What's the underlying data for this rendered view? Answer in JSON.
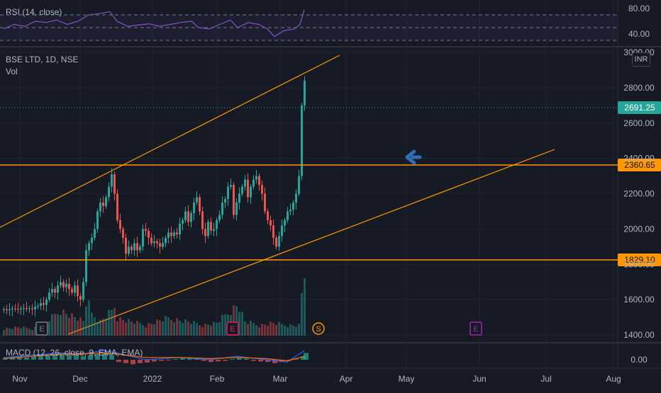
{
  "theme": {
    "background": "#161a25",
    "grid": "#20242f",
    "separator": "#2a2e39",
    "text": "#b2b5be",
    "up": "#26a69a",
    "down": "#ef5350",
    "trend": "#ff9800",
    "rsi_line": "#7e57c2",
    "macd_line": "#2962ff",
    "signal_line": "#ff6d00",
    "arrow": "#2f6fb3",
    "earnings_marker": "#e91e63",
    "dividend_marker": "#ff9800",
    "future_marker": "#9c27b0",
    "last_price_bg": "#26a69a",
    "level_bg": "#ff9800"
  },
  "symbol": {
    "title": "BSE LTD, 1D, NSE",
    "volume_label": "Vol"
  },
  "currency_button": "INR",
  "rsi": {
    "label": "RSI (14, close)",
    "ticks": [
      "80.00",
      "40.00"
    ]
  },
  "macd": {
    "label": "MACD (12, 26, close, 9, EMA, EMA)",
    "tick": "0.00"
  },
  "price_axis": {
    "ticks": [
      "3000.00",
      "2800.00",
      "2600.00",
      "2400.00",
      "2200.00",
      "2000.00",
      "1800.00",
      "1600.00",
      "1400.00"
    ],
    "last_price": "2691.25",
    "levels": [
      "2360.65",
      "1829.10"
    ]
  },
  "time_axis": {
    "labels": [
      "Nov",
      "Dec",
      "2022",
      "Feb",
      "Mar",
      "Apr",
      "May",
      "Jun",
      "Jul",
      "Aug"
    ]
  },
  "markers": {
    "earnings": "E",
    "dividend": "S",
    "future_earnings": "E"
  },
  "chart_data": {
    "type": "candlestick",
    "symbol": "BSE LTD",
    "interval": "1D",
    "exchange": "NSE",
    "currency": "INR",
    "x_axis_labels": [
      "Nov",
      "Dec",
      "2022",
      "Feb",
      "Mar",
      "Apr",
      "May",
      "Jun",
      "Jul",
      "Aug"
    ],
    "y_ticks": [
      1400,
      1600,
      1800,
      2000,
      2200,
      2400,
      2600,
      2800,
      3000
    ],
    "ylim": [
      1320,
      3060
    ],
    "price_levels": [
      2360.65,
      1829.1
    ],
    "last_price": 2691.25,
    "ohlc_trace": [
      [
        0,
        1540
      ],
      [
        4,
        1545
      ],
      [
        8,
        1540
      ],
      [
        12,
        1545
      ],
      [
        16,
        1550
      ],
      [
        20,
        1548
      ],
      [
        24,
        1545
      ],
      [
        28,
        1550
      ],
      [
        32,
        1552
      ],
      [
        36,
        1548
      ],
      [
        40,
        1550
      ],
      [
        44,
        1545
      ],
      [
        48,
        1560
      ],
      [
        52,
        1565
      ],
      [
        56,
        1580
      ],
      [
        60,
        1570
      ],
      [
        64,
        1600
      ],
      [
        68,
        1640
      ],
      [
        72,
        1660
      ],
      [
        76,
        1640
      ],
      [
        80,
        1680
      ],
      [
        84,
        1700
      ],
      [
        88,
        1670
      ],
      [
        92,
        1690
      ],
      [
        96,
        1660
      ],
      [
        100,
        1640
      ],
      [
        104,
        1680
      ],
      [
        108,
        1620
      ],
      [
        112,
        1600
      ],
      [
        116,
        1700
      ],
      [
        120,
        1880
      ],
      [
        124,
        1920
      ],
      [
        128,
        1950
      ],
      [
        132,
        2000
      ],
      [
        136,
        2100
      ],
      [
        140,
        2150
      ],
      [
        144,
        2130
      ],
      [
        148,
        2180
      ],
      [
        152,
        2240
      ],
      [
        156,
        2310
      ],
      [
        160,
        2200
      ],
      [
        164,
        2050
      ],
      [
        168,
        2000
      ],
      [
        172,
        1950
      ],
      [
        176,
        1860
      ],
      [
        180,
        1900
      ],
      [
        184,
        1880
      ],
      [
        188,
        1920
      ],
      [
        192,
        1880
      ],
      [
        196,
        1900
      ],
      [
        200,
        2000
      ],
      [
        204,
        1990
      ],
      [
        208,
        1950
      ],
      [
        212,
        1920
      ],
      [
        216,
        1930
      ],
      [
        220,
        1920
      ],
      [
        224,
        1900
      ],
      [
        228,
        1920
      ],
      [
        232,
        1950
      ],
      [
        236,
        1980
      ],
      [
        240,
        1960
      ],
      [
        244,
        1980
      ],
      [
        248,
        1970
      ],
      [
        252,
        2030
      ],
      [
        256,
        2050
      ],
      [
        260,
        2100
      ],
      [
        264,
        2040
      ],
      [
        268,
        2090
      ],
      [
        272,
        2150
      ],
      [
        276,
        2180
      ],
      [
        280,
        2100
      ],
      [
        284,
        2000
      ],
      [
        288,
        1960
      ],
      [
        292,
        2040
      ],
      [
        296,
        1990
      ],
      [
        300,
        2000
      ],
      [
        304,
        2050
      ],
      [
        308,
        2080
      ],
      [
        312,
        2150
      ],
      [
        316,
        2170
      ],
      [
        320,
        2240
      ],
      [
        324,
        2250
      ],
      [
        328,
        2080
      ],
      [
        332,
        2150
      ],
      [
        336,
        2200
      ],
      [
        340,
        2240
      ],
      [
        344,
        2280
      ],
      [
        348,
        2180
      ],
      [
        352,
        2240
      ],
      [
        356,
        2280
      ],
      [
        360,
        2300
      ],
      [
        364,
        2250
      ],
      [
        368,
        2200
      ],
      [
        372,
        2100
      ],
      [
        376,
        2050
      ],
      [
        380,
        2020
      ],
      [
        384,
        1950
      ],
      [
        388,
        1900
      ],
      [
        392,
        1960
      ],
      [
        396,
        2020
      ],
      [
        400,
        2050
      ],
      [
        404,
        2100
      ],
      [
        408,
        2110
      ],
      [
        412,
        2150
      ],
      [
        416,
        2200
      ],
      [
        420,
        2300
      ],
      [
        424,
        2700
      ],
      [
        428,
        2840
      ]
    ],
    "volume_ref": [
      [
        0,
        1
      ],
      [
        20,
        1.2
      ],
      [
        40,
        1
      ],
      [
        60,
        2
      ],
      [
        80,
        3.6
      ],
      [
        100,
        2.6
      ],
      [
        112,
        2
      ],
      [
        116,
        4.5
      ],
      [
        120,
        6.2
      ],
      [
        124,
        3
      ],
      [
        136,
        2
      ],
      [
        152,
        3.5
      ],
      [
        156,
        4.2
      ],
      [
        160,
        2.5
      ],
      [
        180,
        2
      ],
      [
        200,
        1.5
      ],
      [
        230,
        2.5
      ],
      [
        260,
        2
      ],
      [
        280,
        1.5
      ],
      [
        300,
        1.8
      ],
      [
        330,
        4.5
      ],
      [
        340,
        2
      ],
      [
        360,
        1.5
      ],
      [
        380,
        1.8
      ],
      [
        400,
        1.5
      ],
      [
        416,
        1.5
      ],
      [
        420,
        6
      ],
      [
        424,
        9.2
      ]
    ],
    "rsi": {
      "ylim": [
        25,
        100
      ],
      "ticks": [
        40,
        80
      ],
      "values": [
        [
          0,
          48
        ],
        [
          15,
          55
        ],
        [
          30,
          52
        ],
        [
          45,
          60
        ],
        [
          60,
          58
        ],
        [
          75,
          62
        ],
        [
          90,
          55
        ],
        [
          105,
          60
        ],
        [
          120,
          70
        ],
        [
          135,
          72
        ],
        [
          150,
          75
        ],
        [
          160,
          60
        ],
        [
          175,
          52
        ],
        [
          190,
          54
        ],
        [
          205,
          56
        ],
        [
          220,
          52
        ],
        [
          235,
          55
        ],
        [
          250,
          58
        ],
        [
          265,
          60
        ],
        [
          275,
          50
        ],
        [
          290,
          48
        ],
        [
          305,
          55
        ],
        [
          320,
          62
        ],
        [
          330,
          50
        ],
        [
          345,
          58
        ],
        [
          360,
          55
        ],
        [
          372,
          48
        ],
        [
          382,
          36
        ],
        [
          395,
          45
        ],
        [
          410,
          48
        ],
        [
          418,
          55
        ],
        [
          424,
          78
        ]
      ]
    },
    "macd": {
      "zero_tick": 0.0,
      "histogram": [
        [
          0,
          1.5
        ],
        [
          10,
          2.5
        ],
        [
          20,
          3
        ],
        [
          30,
          2
        ],
        [
          40,
          2.5
        ],
        [
          50,
          3.5
        ],
        [
          60,
          4
        ],
        [
          70,
          4.5
        ],
        [
          80,
          5
        ],
        [
          90,
          4
        ],
        [
          100,
          4.5
        ],
        [
          110,
          3
        ],
        [
          120,
          4
        ],
        [
          130,
          5
        ],
        [
          140,
          6
        ],
        [
          150,
          4
        ],
        [
          160,
          -2
        ],
        [
          170,
          -3
        ],
        [
          180,
          -4
        ],
        [
          190,
          -3
        ],
        [
          200,
          -2.5
        ],
        [
          210,
          -1.5
        ],
        [
          220,
          -1
        ],
        [
          230,
          -0.5
        ],
        [
          240,
          0.5
        ],
        [
          250,
          1.5
        ],
        [
          260,
          2
        ],
        [
          270,
          1
        ],
        [
          280,
          -1
        ],
        [
          290,
          -2
        ],
        [
          300,
          -1.5
        ],
        [
          310,
          -1
        ],
        [
          320,
          0.5
        ],
        [
          330,
          1.5
        ],
        [
          340,
          1
        ],
        [
          350,
          -1
        ],
        [
          360,
          -1.5
        ],
        [
          370,
          -2
        ],
        [
          380,
          -3
        ],
        [
          390,
          -2
        ],
        [
          400,
          -1
        ],
        [
          410,
          1
        ],
        [
          420,
          3
        ],
        [
          424,
          6
        ]
      ],
      "macd_line": [
        [
          0,
          2
        ],
        [
          40,
          4
        ],
        [
          80,
          6
        ],
        [
          110,
          5
        ],
        [
          140,
          8
        ],
        [
          160,
          6
        ],
        [
          200,
          0
        ],
        [
          250,
          2
        ],
        [
          290,
          0
        ],
        [
          330,
          3
        ],
        [
          370,
          0
        ],
        [
          400,
          -2
        ],
        [
          424,
          8
        ]
      ],
      "signal_line": [
        [
          0,
          1
        ],
        [
          40,
          3
        ],
        [
          80,
          5
        ],
        [
          110,
          5
        ],
        [
          140,
          6
        ],
        [
          160,
          5
        ],
        [
          200,
          2
        ],
        [
          250,
          2
        ],
        [
          290,
          1
        ],
        [
          330,
          2
        ],
        [
          370,
          1
        ],
        [
          400,
          -1
        ],
        [
          424,
          3
        ]
      ]
    }
  }
}
